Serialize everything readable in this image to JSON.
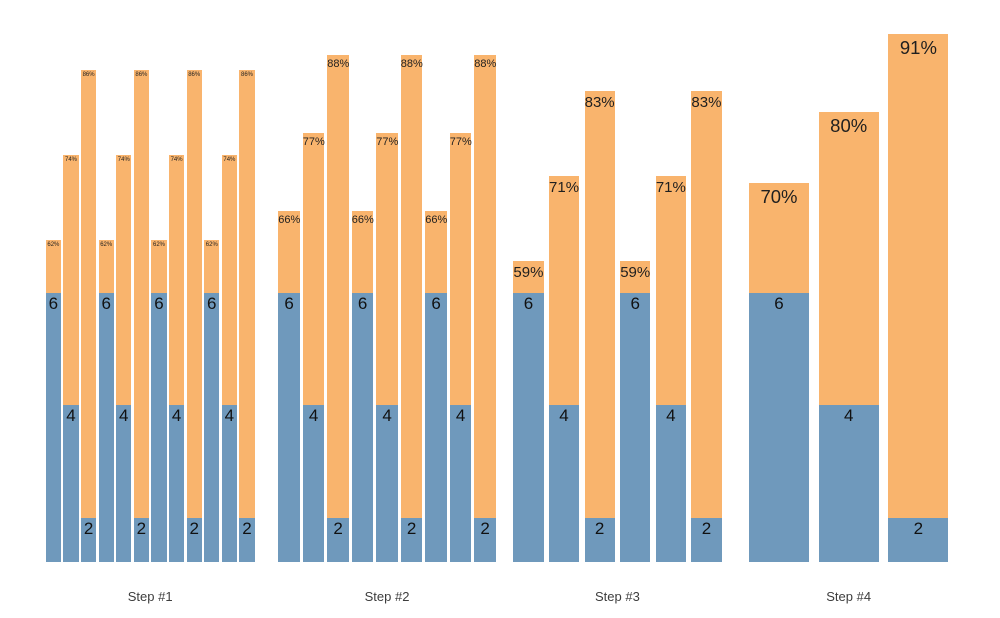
{
  "background": "#ffffff",
  "colors": {
    "blue_segment": "#6f99bc",
    "orange_segment": "#f9b46d",
    "pct_label": "#1f1f1f",
    "value_label": "#111111",
    "step_label": "#3d3d3d"
  },
  "chart_data": {
    "type": "bar",
    "stacked": true,
    "grid": false,
    "legend_visible": false,
    "axes_visible": false,
    "categories": [
      "Step #1",
      "Step #2",
      "Step #3",
      "Step #4"
    ],
    "segments": [
      "blue-base-labeled-with-value",
      "orange-column-labeled-with-percent-at-top"
    ],
    "steps": [
      {
        "label": "Step #1",
        "bars": [
          {
            "value": 6,
            "value_label": "6",
            "pct": 62,
            "pct_label": "62%"
          },
          {
            "value": 4,
            "value_label": "4",
            "pct": 74,
            "pct_label": "74%"
          },
          {
            "value": 2,
            "value_label": "2",
            "pct": 86,
            "pct_label": "86%"
          },
          {
            "value": 6,
            "value_label": "6",
            "pct": 62,
            "pct_label": "62%"
          },
          {
            "value": 4,
            "value_label": "4",
            "pct": 74,
            "pct_label": "74%"
          },
          {
            "value": 2,
            "value_label": "2",
            "pct": 86,
            "pct_label": "86%"
          },
          {
            "value": 6,
            "value_label": "6",
            "pct": 62,
            "pct_label": "62%"
          },
          {
            "value": 4,
            "value_label": "4",
            "pct": 74,
            "pct_label": "74%"
          },
          {
            "value": 2,
            "value_label": "2",
            "pct": 86,
            "pct_label": "86%"
          },
          {
            "value": 6,
            "value_label": "6",
            "pct": 62,
            "pct_label": "62%"
          },
          {
            "value": 4,
            "value_label": "4",
            "pct": 74,
            "pct_label": "74%"
          },
          {
            "value": 2,
            "value_label": "2",
            "pct": 86,
            "pct_label": "86%"
          }
        ]
      },
      {
        "label": "Step #2",
        "bars": [
          {
            "value": 6,
            "value_label": "6",
            "pct": 66,
            "pct_label": "66%"
          },
          {
            "value": 4,
            "value_label": "4",
            "pct": 77,
            "pct_label": "77%"
          },
          {
            "value": 2,
            "value_label": "2",
            "pct": 88,
            "pct_label": "88%"
          },
          {
            "value": 6,
            "value_label": "6",
            "pct": 66,
            "pct_label": "66%"
          },
          {
            "value": 4,
            "value_label": "4",
            "pct": 77,
            "pct_label": "77%"
          },
          {
            "value": 2,
            "value_label": "2",
            "pct": 88,
            "pct_label": "88%"
          },
          {
            "value": 6,
            "value_label": "6",
            "pct": 66,
            "pct_label": "66%"
          },
          {
            "value": 4,
            "value_label": "4",
            "pct": 77,
            "pct_label": "77%"
          },
          {
            "value": 2,
            "value_label": "2",
            "pct": 88,
            "pct_label": "88%"
          }
        ]
      },
      {
        "label": "Step #3",
        "bars": [
          {
            "value": 6,
            "value_label": "6",
            "pct": 59,
            "pct_label": "59%"
          },
          {
            "value": 4,
            "value_label": "4",
            "pct": 71,
            "pct_label": "71%"
          },
          {
            "value": 2,
            "value_label": "2",
            "pct": 83,
            "pct_label": "83%"
          },
          {
            "value": 6,
            "value_label": "6",
            "pct": 59,
            "pct_label": "59%"
          },
          {
            "value": 4,
            "value_label": "4",
            "pct": 71,
            "pct_label": "71%"
          },
          {
            "value": 2,
            "value_label": "2",
            "pct": 83,
            "pct_label": "83%"
          }
        ]
      },
      {
        "label": "Step #4",
        "bars": [
          {
            "value": 6,
            "value_label": "6",
            "pct": 70,
            "pct_label": "70%"
          },
          {
            "value": 4,
            "value_label": "4",
            "pct": 80,
            "pct_label": "80%"
          },
          {
            "value": 2,
            "value_label": "2",
            "pct": 91,
            "pct_label": "91%"
          }
        ]
      }
    ]
  }
}
